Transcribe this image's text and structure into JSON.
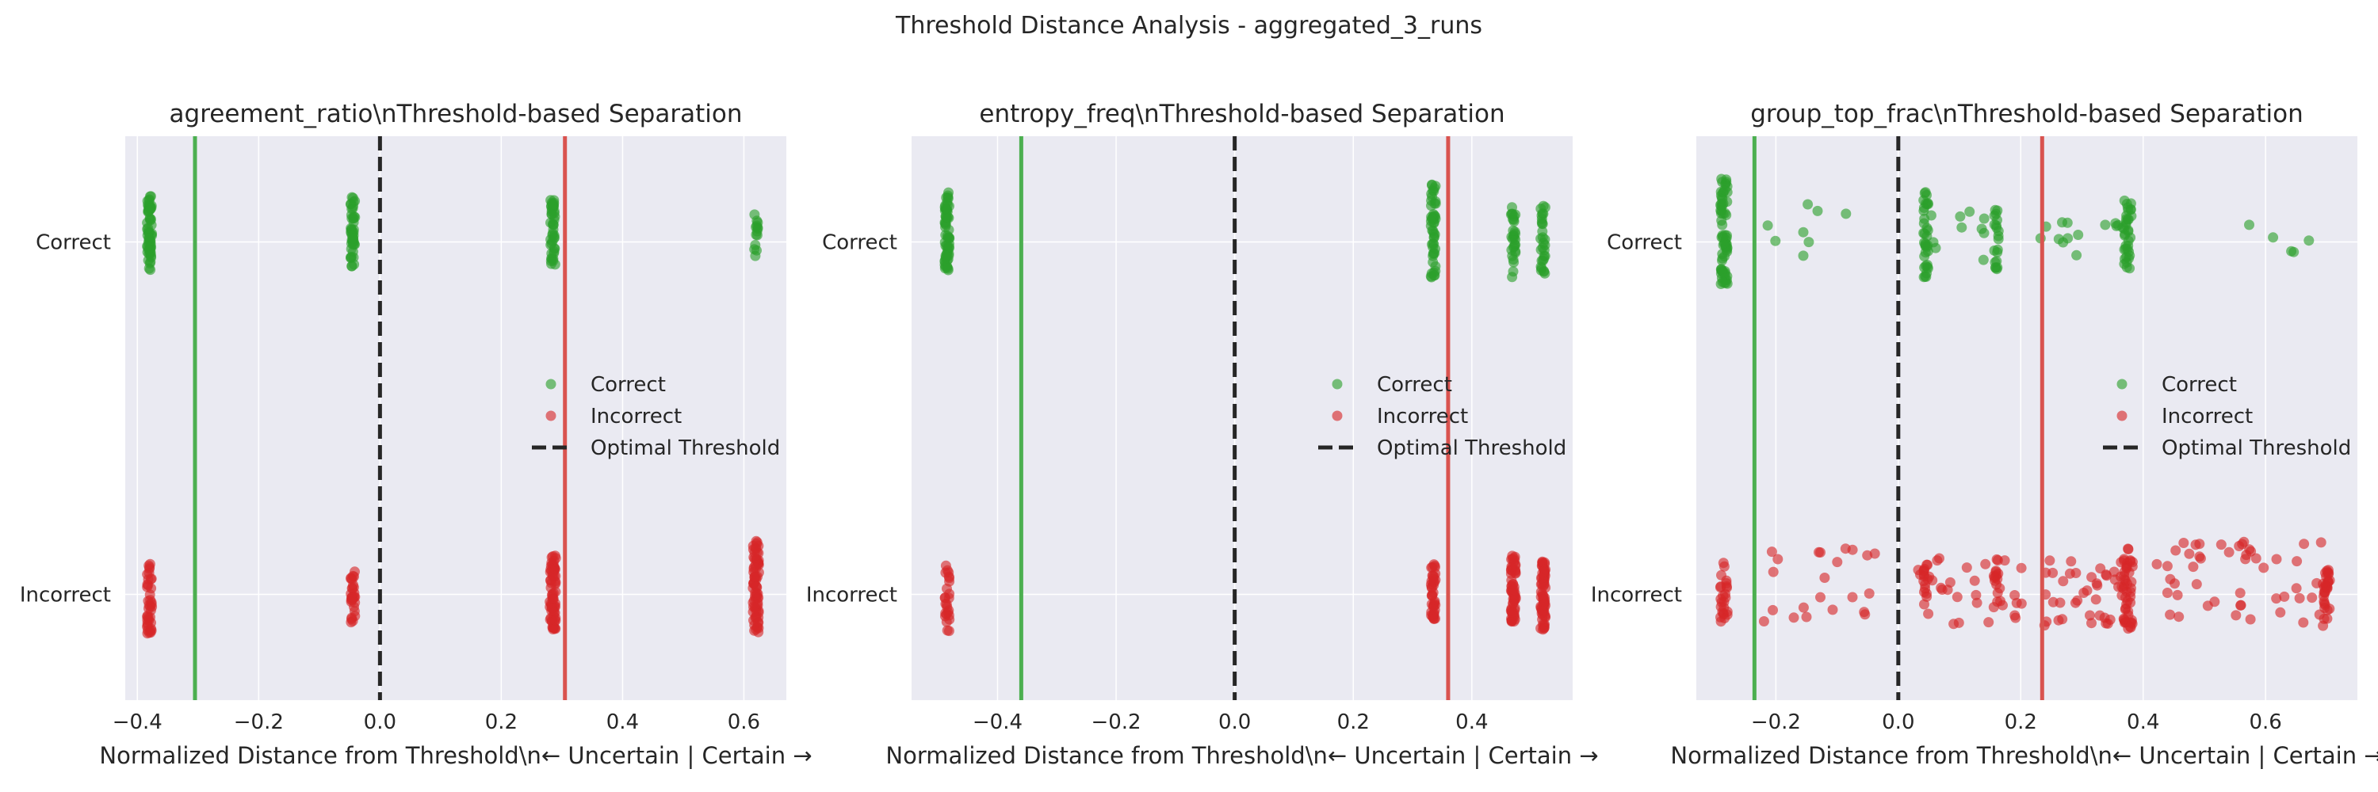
{
  "suptitle": "Threshold Distance Analysis - aggregated_3_runs",
  "colors": {
    "panel_bg": "#eaeaf2",
    "grid": "#ffffff",
    "correct": "#2ca02c",
    "incorrect": "#d62728",
    "correct_line": "#4caf50",
    "incorrect_line": "#d9534f",
    "threshold_line": "#262626"
  },
  "chart_data": [
    {
      "type": "scatter",
      "title": "agreement_ratio\\nThreshold-based Separation",
      "xlabel": "Normalized Distance from Threshold\\n← Uncertain | Certain →",
      "xlim": [
        -0.42,
        0.67
      ],
      "ylim": [
        -0.3,
        1.3
      ],
      "yticks": [
        {
          "value": 0,
          "label": "Incorrect"
        },
        {
          "value": 1,
          "label": "Correct"
        }
      ],
      "xticks": [
        {
          "value": -0.4,
          "label": "−0.4"
        },
        {
          "value": -0.2,
          "label": "−0.2"
        },
        {
          "value": 0.0,
          "label": "0.0"
        },
        {
          "value": 0.2,
          "label": "0.2"
        },
        {
          "value": 0.4,
          "label": "0.4"
        },
        {
          "value": 0.6,
          "label": "0.6"
        }
      ],
      "threshold": 0.0,
      "correct_line": -0.305,
      "incorrect_line": 0.305,
      "legend": {
        "position": "center-right",
        "entries": [
          "Correct",
          "Incorrect",
          "Optimal Threshold"
        ]
      },
      "series": [
        {
          "name": "Correct",
          "y": 1,
          "clusters": [
            {
              "x": -0.38,
              "count": 60,
              "xspread": 0.004,
              "ymin": 0.92,
              "ymax": 1.13
            },
            {
              "x": -0.045,
              "count": 45,
              "xspread": 0.004,
              "ymin": 0.93,
              "ymax": 1.13
            },
            {
              "x": 0.285,
              "count": 45,
              "xspread": 0.004,
              "ymin": 0.93,
              "ymax": 1.12
            },
            {
              "x": 0.62,
              "count": 14,
              "xspread": 0.003,
              "ymin": 0.96,
              "ymax": 1.08
            }
          ]
        },
        {
          "name": "Incorrect",
          "y": 0,
          "clusters": [
            {
              "x": -0.38,
              "count": 40,
              "xspread": 0.004,
              "ymin": -0.12,
              "ymax": 0.09
            },
            {
              "x": -0.045,
              "count": 30,
              "xspread": 0.004,
              "ymin": -0.08,
              "ymax": 0.07
            },
            {
              "x": 0.285,
              "count": 70,
              "xspread": 0.005,
              "ymin": -0.1,
              "ymax": 0.11
            },
            {
              "x": 0.62,
              "count": 75,
              "xspread": 0.005,
              "ymin": -0.11,
              "ymax": 0.16
            }
          ]
        }
      ]
    },
    {
      "type": "scatter",
      "title": "entropy_freq\\nThreshold-based Separation",
      "xlabel": "Normalized Distance from Threshold\\n← Uncertain | Certain →",
      "xlim": [
        -0.545,
        0.57
      ],
      "ylim": [
        -0.3,
        1.3
      ],
      "yticks": [
        {
          "value": 0,
          "label": "Incorrect"
        },
        {
          "value": 1,
          "label": "Correct"
        }
      ],
      "xticks": [
        {
          "value": -0.4,
          "label": "−0.4"
        },
        {
          "value": -0.2,
          "label": "−0.2"
        },
        {
          "value": 0.0,
          "label": "0.0"
        },
        {
          "value": 0.2,
          "label": "0.2"
        },
        {
          "value": 0.4,
          "label": "0.4"
        }
      ],
      "threshold": 0.0,
      "correct_line": -0.36,
      "incorrect_line": 0.36,
      "legend": {
        "position": "center-right",
        "entries": [
          "Correct",
          "Incorrect",
          "Optimal Threshold"
        ]
      },
      "series": [
        {
          "name": "Correct",
          "y": 1,
          "clusters": [
            {
              "x": -0.485,
              "count": 60,
              "xspread": 0.004,
              "ymin": 0.92,
              "ymax": 1.15
            },
            {
              "x": 0.335,
              "count": 50,
              "xspread": 0.004,
              "ymin": 0.89,
              "ymax": 1.17
            },
            {
              "x": 0.47,
              "count": 30,
              "xspread": 0.004,
              "ymin": 0.9,
              "ymax": 1.11
            },
            {
              "x": 0.52,
              "count": 30,
              "xspread": 0.004,
              "ymin": 0.9,
              "ymax": 1.11
            }
          ]
        },
        {
          "name": "Incorrect",
          "y": 0,
          "clusters": [
            {
              "x": -0.485,
              "count": 25,
              "xspread": 0.004,
              "ymin": -0.12,
              "ymax": 0.09
            },
            {
              "x": 0.335,
              "count": 40,
              "xspread": 0.004,
              "ymin": -0.07,
              "ymax": 0.09
            },
            {
              "x": 0.47,
              "count": 60,
              "xspread": 0.004,
              "ymin": -0.08,
              "ymax": 0.11
            },
            {
              "x": 0.52,
              "count": 70,
              "xspread": 0.004,
              "ymin": -0.1,
              "ymax": 0.11
            }
          ]
        }
      ]
    },
    {
      "type": "scatter",
      "title": "group_top_frac\\nThreshold-based Separation",
      "xlabel": "Normalized Distance from Threshold\\n← Uncertain | Certain →",
      "xlim": [
        -0.33,
        0.75
      ],
      "ylim": [
        -0.3,
        1.3
      ],
      "yticks": [
        {
          "value": 0,
          "label": "Incorrect"
        },
        {
          "value": 1,
          "label": "Correct"
        }
      ],
      "xticks": [
        {
          "value": -0.2,
          "label": "−0.2"
        },
        {
          "value": 0.0,
          "label": "0.0"
        },
        {
          "value": 0.2,
          "label": "0.2"
        },
        {
          "value": 0.4,
          "label": "0.4"
        },
        {
          "value": 0.6,
          "label": "0.6"
        }
      ],
      "threshold": 0.0,
      "correct_line": -0.235,
      "incorrect_line": 0.235,
      "legend": {
        "position": "center-right",
        "entries": [
          "Correct",
          "Incorrect",
          "Optimal Threshold"
        ]
      },
      "series": [
        {
          "name": "Correct",
          "y": 1,
          "clusters": [
            {
              "x": -0.285,
              "count": 70,
              "xspread": 0.006,
              "ymin": 0.88,
              "ymax": 1.18
            },
            {
              "x": 0.045,
              "count": 35,
              "xspread": 0.004,
              "ymin": 0.9,
              "ymax": 1.15
            },
            {
              "x": 0.16,
              "count": 20,
              "xspread": 0.004,
              "ymin": 0.92,
              "ymax": 1.1
            },
            {
              "x": 0.375,
              "count": 35,
              "xspread": 0.006,
              "ymin": 0.92,
              "ymax": 1.12
            },
            {
              "x": -0.16,
              "count": 8,
              "xspread": 0.09,
              "ymin": 0.9,
              "ymax": 1.12
            },
            {
              "x": 0.1,
              "count": 10,
              "xspread": 0.06,
              "ymin": 0.94,
              "ymax": 1.12
            },
            {
              "x": 0.3,
              "count": 14,
              "xspread": 0.07,
              "ymin": 0.95,
              "ymax": 1.07
            },
            {
              "x": 0.64,
              "count": 5,
              "xspread": 0.07,
              "ymin": 0.97,
              "ymax": 1.06
            }
          ]
        },
        {
          "name": "Incorrect",
          "y": 0,
          "clusters": [
            {
              "x": -0.285,
              "count": 25,
              "xspread": 0.006,
              "ymin": -0.1,
              "ymax": 0.09
            },
            {
              "x": 0.045,
              "count": 15,
              "xspread": 0.004,
              "ymin": -0.07,
              "ymax": 0.09
            },
            {
              "x": 0.16,
              "count": 15,
              "xspread": 0.004,
              "ymin": -0.06,
              "ymax": 0.12
            },
            {
              "x": 0.375,
              "count": 45,
              "xspread": 0.008,
              "ymin": -0.1,
              "ymax": 0.13
            },
            {
              "x": 0.7,
              "count": 30,
              "xspread": 0.005,
              "ymin": -0.07,
              "ymax": 0.07
            },
            {
              "x": -0.12,
              "count": 22,
              "xspread": 0.1,
              "ymin": -0.09,
              "ymax": 0.13
            },
            {
              "x": 0.12,
              "count": 30,
              "xspread": 0.09,
              "ymin": -0.09,
              "ymax": 0.11
            },
            {
              "x": 0.3,
              "count": 40,
              "xspread": 0.07,
              "ymin": -0.09,
              "ymax": 0.1
            },
            {
              "x": 0.56,
              "count": 50,
              "xspread": 0.14,
              "ymin": -0.09,
              "ymax": 0.15
            }
          ]
        }
      ]
    }
  ]
}
